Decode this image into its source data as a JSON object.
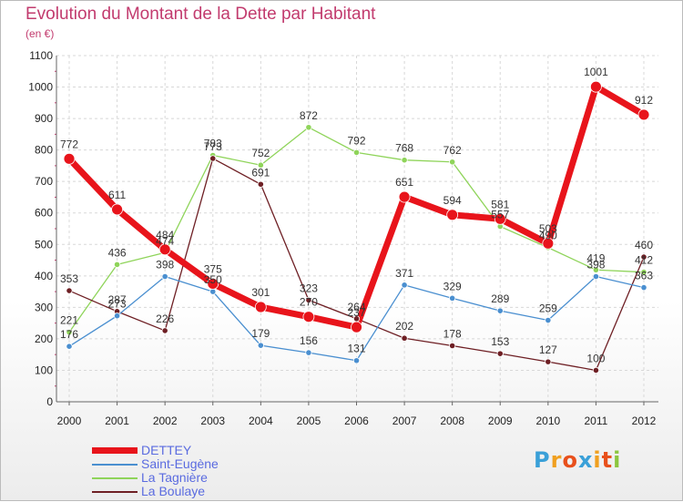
{
  "chart_data": {
    "type": "line",
    "title": "Evolution du Montant de la Dette par Habitant",
    "subtitle": "(en €)",
    "x": [
      "2000",
      "2001",
      "2002",
      "2003",
      "2004",
      "2005",
      "2006",
      "2007",
      "2008",
      "2009",
      "2010",
      "2011",
      "2012"
    ],
    "ylim": [
      0,
      1100
    ],
    "yticks": [
      0,
      100,
      200,
      300,
      400,
      500,
      600,
      700,
      800,
      900,
      1000,
      1100
    ],
    "grid": true,
    "legend_position": "bottom-left",
    "series": [
      {
        "name": "La Tagnière",
        "color": "#8fd45a",
        "width": 1.3,
        "values": [
          221,
          436,
          474,
          783,
          752,
          872,
          792,
          768,
          762,
          557,
          490,
          419,
          412
        ]
      },
      {
        "name": "La Boulaye",
        "color": "#6e1f24",
        "width": 1.3,
        "values": [
          353,
          287,
          226,
          773,
          691,
          323,
          264,
          202,
          178,
          153,
          127,
          100,
          460
        ]
      },
      {
        "name": "Saint-Eugène",
        "color": "#4a8fd0",
        "width": 1.3,
        "values": [
          176,
          273,
          398,
          350,
          179,
          156,
          131,
          371,
          329,
          289,
          259,
          398,
          363
        ]
      },
      {
        "name": "DETTEY",
        "color": "#e8141b",
        "width": 7,
        "values": [
          772,
          611,
          484,
          375,
          301,
          270,
          237,
          651,
          594,
          581,
          503,
          1001,
          912
        ]
      }
    ]
  },
  "legend": {
    "items": [
      {
        "label": "DETTEY",
        "color": "#e8141b",
        "text_color": "#5a6be0"
      },
      {
        "label": "Saint-Eugène",
        "color": "#4a8fd0",
        "text_color": "#5a6be0"
      },
      {
        "label": "La Tagnière",
        "color": "#8fd45a",
        "text_color": "#5a6be0"
      },
      {
        "label": "La Boulaye",
        "color": "#6e1f24",
        "text_color": "#5a6be0"
      }
    ]
  },
  "logo": {
    "letters": [
      "P",
      "r",
      "o",
      "x",
      "i",
      "t",
      "i"
    ],
    "colors": [
      "#3aa0d8",
      "#f0a020",
      "#e8501c",
      "#3aa0d8",
      "#f0a020",
      "#e8501c",
      "#8cc63f"
    ]
  }
}
